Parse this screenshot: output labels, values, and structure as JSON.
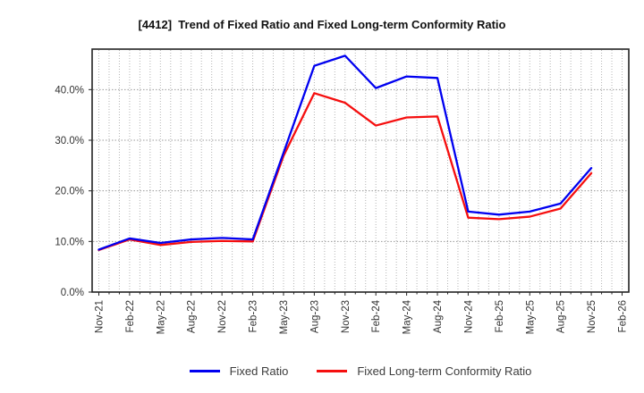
{
  "chart_data": {
    "type": "line",
    "title": "[4412]  Trend of Fixed Ratio and Fixed Long-term Conformity Ratio",
    "categories": [
      "Nov-21",
      "Feb-22",
      "May-22",
      "Aug-22",
      "Nov-22",
      "Feb-23",
      "May-23",
      "Aug-23",
      "Nov-23",
      "Feb-24",
      "May-24",
      "Aug-24",
      "Nov-24",
      "Feb-25",
      "May-25",
      "Aug-25",
      "Nov-25",
      "Feb-26"
    ],
    "y_ticks": [
      {
        "value": 0,
        "label": "0.0%"
      },
      {
        "value": 10,
        "label": "10.0%"
      },
      {
        "value": 20,
        "label": "20.0%"
      },
      {
        "value": 30,
        "label": "30.0%"
      },
      {
        "value": 40,
        "label": "40.0%"
      }
    ],
    "ylim": [
      0,
      48
    ],
    "grid": true,
    "months_per_category": 3,
    "legend_position": "bottom",
    "series": [
      {
        "name": "Fixed Ratio",
        "color": "#0000f0",
        "values": [
          8.4,
          10.6,
          9.7,
          10.4,
          10.7,
          10.4,
          27.5,
          44.7,
          46.7,
          40.3,
          42.6,
          42.3,
          15.9,
          15.3,
          15.9,
          17.5,
          24.5,
          null
        ]
      },
      {
        "name": "Fixed Long-term Conformity Ratio",
        "color": "#f50f0f",
        "values": [
          8.3,
          10.4,
          9.3,
          9.9,
          10.1,
          10.0,
          26.9,
          39.3,
          37.4,
          32.9,
          34.5,
          34.7,
          14.7,
          14.4,
          14.9,
          16.5,
          23.5,
          null
        ]
      }
    ],
    "axis_color": "#222222",
    "grid_minor_color": "#b4b4b4",
    "grid_major_color": "#9a9a9a",
    "tick_label_color": "#333333"
  }
}
